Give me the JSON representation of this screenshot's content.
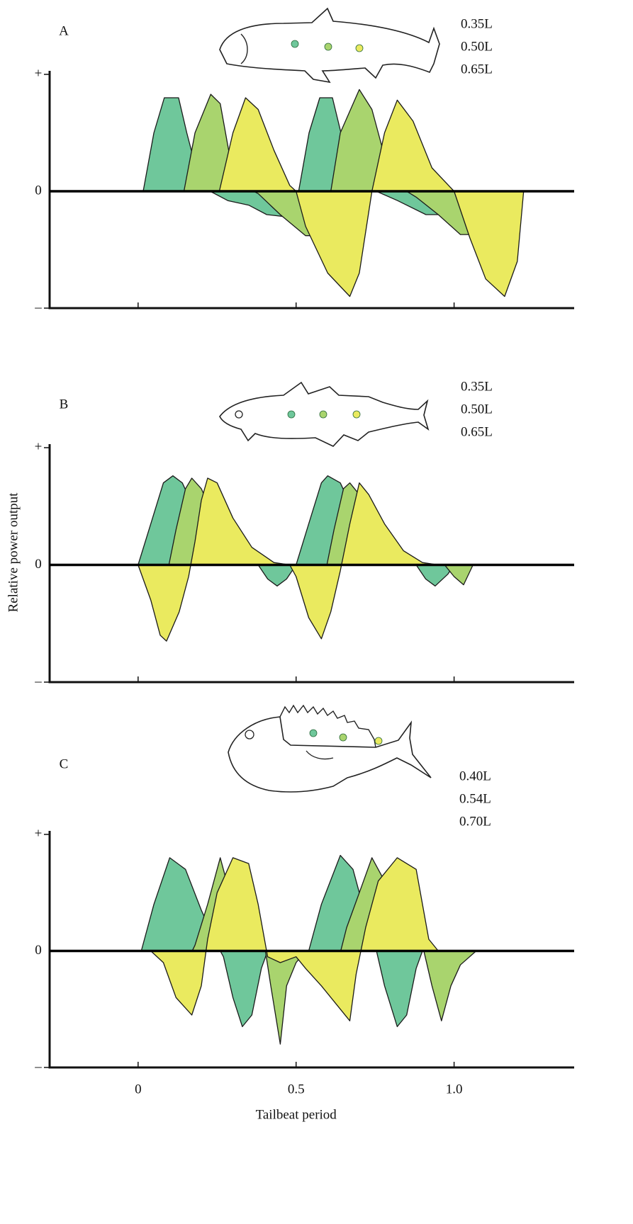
{
  "chart_data": [
    {
      "type": "area",
      "panel_label": "A",
      "xlim": [
        -0.28,
        1.38
      ],
      "ylim": [
        -1,
        1
      ],
      "xticks": [
        0,
        0.5,
        {
          "value": 1,
          "label": "1.0"
        }
      ],
      "show_xtick_labels": false,
      "yticks": [
        {
          "value": 1,
          "label": "+"
        },
        0,
        {
          "value": -1,
          "label": "–"
        }
      ],
      "series": [
        {
          "name": "0.35L",
          "color": "#6fc79b",
          "x": [
            0.016,
            0.05,
            0.083,
            0.128,
            0.154,
            0.183,
            0.228,
            0.284,
            0.351,
            0.407,
            0.474,
            0.508,
            0.541,
            0.575,
            0.615,
            0.642,
            0.687,
            0.754,
            0.821,
            0.911,
            0.966,
            1.0
          ],
          "values": [
            0,
            0.5,
            0.8,
            0.8,
            0.5,
            0.2,
            0,
            -0.08,
            -0.12,
            -0.2,
            -0.22,
            0,
            0.5,
            0.8,
            0.8,
            0.5,
            0.1,
            0,
            -0.08,
            -0.2,
            -0.2,
            0
          ]
        },
        {
          "name": "0.50L",
          "color": "#a9d46e",
          "x": [
            0.145,
            0.18,
            0.23,
            0.26,
            0.29,
            0.33,
            0.38,
            0.45,
            0.53,
            0.58,
            0.61,
            0.64,
            0.7,
            0.74,
            0.78,
            0.82,
            0.88,
            0.95,
            1.02,
            1.07,
            1.1
          ],
          "values": [
            0,
            0.5,
            0.83,
            0.75,
            0.3,
            0.05,
            -0.02,
            -0.2,
            -0.38,
            -0.38,
            0,
            0.5,
            0.87,
            0.7,
            0.3,
            0.05,
            -0.05,
            -0.2,
            -0.37,
            -0.37,
            0
          ]
        },
        {
          "name": "0.65L",
          "color": "#eaea5f",
          "x": [
            0.257,
            0.3,
            0.34,
            0.38,
            0.43,
            0.48,
            0.5,
            0.53,
            0.6,
            0.67,
            0.7,
            0.74,
            0.78,
            0.82,
            0.87,
            0.93,
            1.0,
            1.05,
            1.1,
            1.16,
            1.2,
            1.22
          ],
          "values": [
            0,
            0.5,
            0.8,
            0.7,
            0.35,
            0.05,
            0,
            -0.3,
            -0.7,
            -0.9,
            -0.7,
            0,
            0.5,
            0.78,
            0.6,
            0.2,
            0,
            -0.4,
            -0.75,
            -0.9,
            -0.6,
            0
          ]
        }
      ]
    },
    {
      "type": "area",
      "panel_label": "B",
      "y_label": "Relative power output",
      "xlim": [
        -0.28,
        1.38
      ],
      "ylim": [
        -1,
        1
      ],
      "xticks": [
        0,
        0.5,
        {
          "value": 1,
          "label": "1.0"
        }
      ],
      "show_xtick_labels": false,
      "yticks": [
        {
          "value": 1,
          "label": "+"
        },
        0,
        {
          "value": -1,
          "label": "–"
        }
      ],
      "series": [
        {
          "name": "0.35L",
          "color": "#6fc79b",
          "x": [
            0,
            0.04,
            0.08,
            0.11,
            0.14,
            0.2,
            0.26,
            0.33,
            0.38,
            0.41,
            0.44,
            0.47,
            0.5,
            0.54,
            0.58,
            0.6,
            0.64,
            0.7,
            0.76,
            0.83,
            0.88,
            0.91,
            0.94,
            0.98,
            1.0
          ],
          "values": [
            0,
            0.35,
            0.7,
            0.76,
            0.7,
            0.35,
            0.12,
            0.02,
            0,
            -0.12,
            -0.18,
            -0.12,
            0,
            0.35,
            0.7,
            0.76,
            0.7,
            0.35,
            0.12,
            0.02,
            0,
            -0.12,
            -0.18,
            -0.08,
            0
          ]
        },
        {
          "name": "0.50L",
          "color": "#a9d46e",
          "x": [
            0,
            0.03,
            0.06,
            0.09,
            0.12,
            0.15,
            0.17,
            0.2,
            0.25,
            0.31,
            0.38,
            0.42,
            0.5,
            0.53,
            0.56,
            0.59,
            0.62,
            0.65,
            0.67,
            0.7,
            0.75,
            0.81,
            0.88,
            0.97,
            1.0,
            1.03,
            1.06
          ],
          "values": [
            0,
            -0.12,
            -0.17,
            -0.1,
            0.3,
            0.65,
            0.74,
            0.65,
            0.35,
            0.12,
            0.02,
            0,
            0,
            -0.12,
            -0.17,
            -0.1,
            0.3,
            0.65,
            0.7,
            0.6,
            0.3,
            0.1,
            0,
            0,
            -0.1,
            -0.17,
            0
          ]
        },
        {
          "name": "0.65L",
          "color": "#eaea5f",
          "x": [
            0,
            0.04,
            0.07,
            0.09,
            0.13,
            0.16,
            0.18,
            0.2,
            0.22,
            0.25,
            0.3,
            0.36,
            0.43,
            0.48,
            0.5,
            0.54,
            0.58,
            0.61,
            0.64,
            0.67,
            0.7,
            0.73,
            0.78,
            0.84,
            0.9,
            0.95
          ],
          "values": [
            0,
            -0.3,
            -0.6,
            -0.65,
            -0.4,
            -0.1,
            0.2,
            0.55,
            0.74,
            0.7,
            0.4,
            0.15,
            0.02,
            0,
            -0.1,
            -0.45,
            -0.63,
            -0.4,
            -0.05,
            0.35,
            0.7,
            0.6,
            0.35,
            0.12,
            0.02,
            0
          ]
        }
      ]
    },
    {
      "type": "area",
      "panel_label": "C",
      "x_label": "Tailbeat period",
      "xlim": [
        -0.28,
        1.38
      ],
      "ylim": [
        -1,
        1
      ],
      "xticks": [
        0,
        0.5,
        {
          "value": 1,
          "label": "1.0"
        }
      ],
      "show_xtick_labels": true,
      "yticks": [
        {
          "value": 1,
          "label": "+"
        },
        0,
        {
          "value": -1,
          "label": "–"
        }
      ],
      "series": [
        {
          "name": "0.40L",
          "color": "#6fc79b",
          "x": [
            0.01,
            0.05,
            0.1,
            0.15,
            0.2,
            0.25,
            0.27,
            0.3,
            0.33,
            0.36,
            0.39,
            0.41,
            0.54,
            0.58,
            0.64,
            0.68,
            0.72,
            0.75,
            0.78,
            0.82,
            0.85,
            0.88,
            0.9
          ],
          "values": [
            0,
            0.4,
            0.8,
            0.7,
            0.35,
            0.05,
            -0.05,
            -0.4,
            -0.65,
            -0.55,
            -0.15,
            0,
            0,
            0.4,
            0.82,
            0.7,
            0.3,
            0.05,
            -0.3,
            -0.65,
            -0.55,
            -0.15,
            0
          ]
        },
        {
          "name": "0.54L",
          "color": "#a9d46e",
          "x": [
            0.12,
            0.15,
            0.18,
            0.22,
            0.26,
            0.28,
            0.32,
            0.36,
            0.4,
            0.42,
            0.45,
            0.47,
            0.5,
            0.53,
            0.6,
            0.63,
            0.66,
            0.7,
            0.74,
            0.78,
            0.82,
            0.86,
            0.9,
            0.93,
            0.96,
            0.99,
            1.02,
            1.07
          ],
          "values": [
            0,
            -0.12,
            0.05,
            0.4,
            0.8,
            0.6,
            0.45,
            0.3,
            0.05,
            -0.3,
            -0.8,
            -0.3,
            -0.1,
            0,
            0,
            -0.12,
            0.2,
            0.5,
            0.8,
            0.6,
            0.45,
            0.3,
            0.05,
            -0.3,
            -0.6,
            -0.3,
            -0.12,
            0
          ]
        },
        {
          "name": "0.70L",
          "color": "#eaea5f",
          "x": [
            0.04,
            0.08,
            0.12,
            0.17,
            0.2,
            0.22,
            0.25,
            0.3,
            0.35,
            0.38,
            0.41,
            0.45,
            0.5,
            0.53,
            0.58,
            0.67,
            0.69,
            0.72,
            0.76,
            0.82,
            0.88,
            0.92,
            0.95,
            1.0
          ],
          "values": [
            0,
            -0.1,
            -0.4,
            -0.55,
            -0.3,
            0.1,
            0.5,
            0.8,
            0.75,
            0.4,
            -0.05,
            -0.1,
            -0.05,
            -0.15,
            -0.3,
            -0.6,
            -0.2,
            0.2,
            0.6,
            0.8,
            0.7,
            0.1,
            0,
            0
          ]
        }
      ]
    }
  ]
}
